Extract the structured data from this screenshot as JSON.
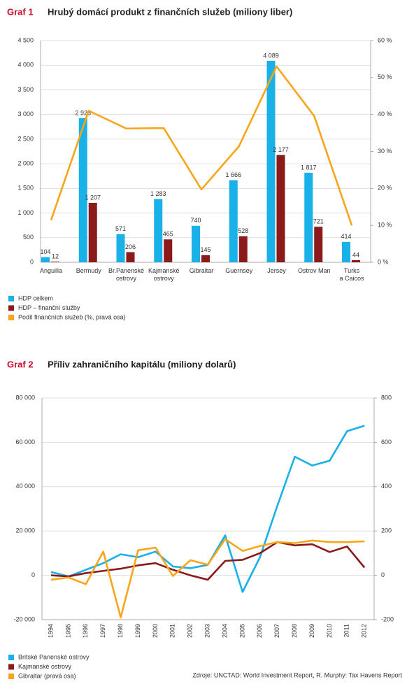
{
  "chart_data": [
    {
      "type": "bar",
      "label": "Graf 1",
      "title": "Hrubý domácí produkt z finančních služeb (miliony liber)",
      "categories": [
        "Anguilla",
        "Bermudy",
        "Br.Panenské\nostrovy",
        "Kajmanské\nostrovy",
        "Gibraltar",
        "Guernsey",
        "Jersey",
        "Ostrov Man",
        "Turks\na Caicos"
      ],
      "series": [
        {
          "name": "HDP celkem",
          "color": "#1ab0e8",
          "values": [
            104,
            2925,
            571,
            1283,
            740,
            1666,
            4089,
            1817,
            414
          ],
          "value_labels": [
            "104",
            "2 925",
            "571",
            "1 283",
            "740",
            "1 666",
            "4 089",
            "1 817",
            "414"
          ]
        },
        {
          "name": "HDP – finanční služby",
          "color": "#8b1a1a",
          "values": [
            12,
            1207,
            206,
            465,
            145,
            528,
            2177,
            721,
            44
          ],
          "value_labels": [
            "12",
            "1 207",
            "206",
            "465",
            "145",
            "528",
            "2 177",
            "721",
            "44"
          ]
        },
        {
          "name": "Podíl finančních služeb (%, pravá osa)",
          "type": "line",
          "axis": "y2",
          "color": "#f9a51a",
          "values": [
            11.4,
            41,
            36.2,
            36.3,
            19.7,
            31.4,
            53,
            39.6,
            10
          ]
        }
      ],
      "ylim": [
        0,
        4500
      ],
      "yticks": [
        0,
        500,
        {
          "value": 1000,
          "label": "1 000"
        },
        {
          "value": 1500,
          "label": "1 500"
        },
        {
          "value": 2000,
          "label": "2 000"
        },
        {
          "value": 2500,
          "label": "2 500"
        },
        {
          "value": 3000,
          "label": "3 000"
        },
        {
          "value": 3500,
          "label": "3 500"
        },
        {
          "value": 4000,
          "label": "4 000"
        },
        {
          "value": 4500,
          "label": "4 500"
        }
      ],
      "y2lim": [
        0,
        60
      ],
      "y2ticks": [
        {
          "value": 0,
          "label": "0 %"
        },
        {
          "value": 10,
          "label": "10 %"
        },
        {
          "value": 20,
          "label": "20 %"
        },
        {
          "value": 30,
          "label": "30 %"
        },
        {
          "value": 40,
          "label": "40 %"
        },
        {
          "value": 50,
          "label": "50 %"
        },
        {
          "value": 60,
          "label": "60 %"
        }
      ],
      "grid": true,
      "legend": "bottom-left"
    },
    {
      "type": "line",
      "label": "Graf 2",
      "title": "Příliv zahraničního kapitálu (miliony dolarů)",
      "x": [
        1994,
        1995,
        1996,
        1997,
        1998,
        1999,
        2000,
        2001,
        2002,
        2003,
        2004,
        2005,
        2006,
        2007,
        2008,
        2009,
        2010,
        2011,
        2012
      ],
      "series": [
        {
          "name": "Britské Panenské ostrovy",
          "color": "#1ab0e8",
          "values": [
            1500,
            -500,
            2500,
            5500,
            9500,
            8200,
            10700,
            4000,
            3200,
            4700,
            18000,
            -7500,
            8200,
            31500,
            53500,
            49500,
            51700,
            65000,
            67500
          ]
        },
        {
          "name": "Kajmanské ostrovy",
          "color": "#8b1a1a",
          "values": [
            0,
            -500,
            1000,
            2000,
            3000,
            4500,
            5500,
            2500,
            0,
            -2000,
            6500,
            7000,
            10000,
            15000,
            13500,
            14000,
            10500,
            13000,
            3500
          ]
        },
        {
          "name": "Gibraltar (pravá osa)",
          "color": "#f9a51a",
          "axis": "y2",
          "values": [
            -20,
            -10,
            -40,
            107,
            -190,
            113,
            125,
            -3,
            68,
            48,
            163,
            110,
            132,
            150,
            145,
            157,
            150,
            150,
            153
          ]
        }
      ],
      "xlim": [
        1994,
        2012
      ],
      "ylim": [
        -20000,
        80000
      ],
      "yticks": [
        {
          "value": -20000,
          "label": "-20 000"
        },
        0,
        {
          "value": 20000,
          "label": "20 000"
        },
        {
          "value": 40000,
          "label": "40 000"
        },
        {
          "value": 60000,
          "label": "60 000"
        },
        {
          "value": 80000,
          "label": "80 000"
        }
      ],
      "y2lim": [
        -200,
        800
      ],
      "y2ticks": [
        -200,
        0,
        200,
        400,
        600,
        800
      ],
      "grid": true,
      "legend": "bottom-left",
      "source": "Zdroje: UNCTAD: World Investment Report, R. Murphy: Tax Havens Report"
    }
  ]
}
